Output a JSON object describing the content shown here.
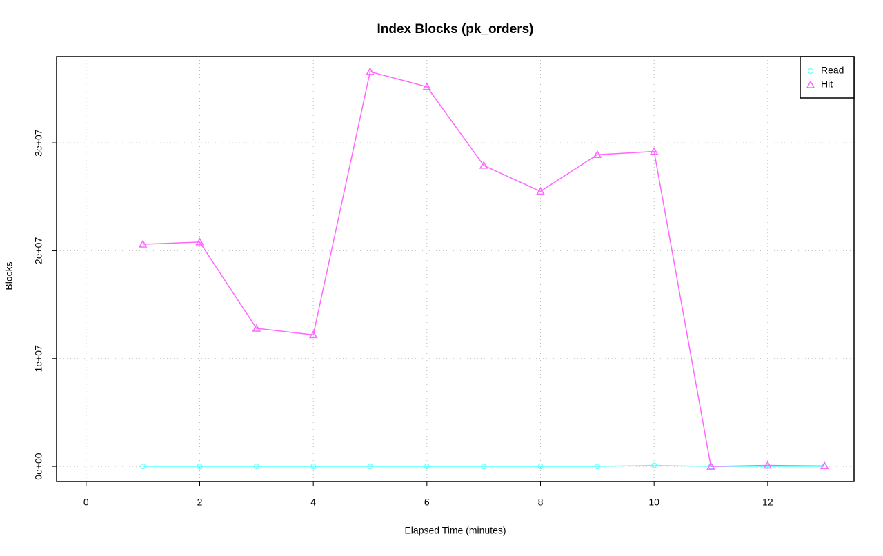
{
  "chart_data": {
    "type": "line",
    "title": "Index Blocks (pk_orders)",
    "x_label": "Elapsed Time (minutes)",
    "y_label": "Blocks",
    "x": [
      1,
      2,
      3,
      4,
      5,
      6,
      7,
      8,
      9,
      10,
      11,
      12,
      13
    ],
    "series": [
      {
        "name": "Read",
        "color": "#66ffff",
        "marker": "circle",
        "values": [
          0,
          0,
          0,
          0,
          0,
          0,
          0,
          0,
          0,
          100000,
          0,
          0,
          0
        ]
      },
      {
        "name": "Hit",
        "color": "#ff66ff",
        "marker": "triangle",
        "values": [
          20600000,
          20800000,
          12800000,
          12200000,
          36600000,
          35200000,
          27900000,
          25500000,
          28900000,
          29200000,
          0,
          100000,
          50000
        ]
      }
    ],
    "xlim": [
      -0.52,
      13.52
    ],
    "xticks": [
      0,
      2,
      4,
      6,
      8,
      10,
      12
    ],
    "ylim": [
      -1400000,
      38000000
    ],
    "yticks": [
      {
        "value": 0,
        "label": "0e+00"
      },
      {
        "value": 10000000,
        "label": "1e+07"
      },
      {
        "value": 20000000,
        "label": "2e+07"
      },
      {
        "value": 30000000,
        "label": "3e+07"
      }
    ],
    "grid": true,
    "legend": "top-right"
  }
}
